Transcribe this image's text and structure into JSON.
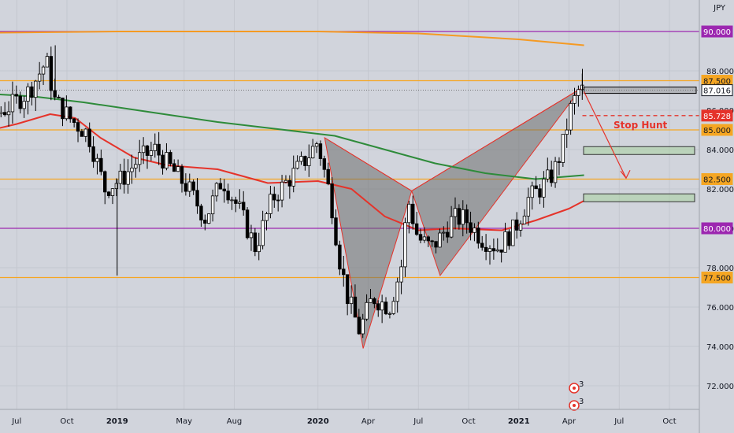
{
  "chart_data": {
    "type": "candlestick",
    "symbol": "JPY",
    "x_tick_labels": [
      "Jul",
      "Oct",
      "2019",
      "May",
      "Aug",
      "2020",
      "Apr",
      "Jul",
      "Oct",
      "2021",
      "Apr",
      "Jul",
      "Oct"
    ],
    "x_tick_months": [
      6,
      9,
      12,
      16,
      19,
      24,
      27,
      30,
      33,
      36,
      39,
      42,
      45
    ],
    "y_tick_labels": [
      "72.000",
      "74.000",
      "76.000",
      "78.000",
      "80.000",
      "82.000",
      "84.000",
      "86.000",
      "88.000"
    ],
    "y_ticks": [
      72,
      74,
      76,
      78,
      80,
      82,
      84,
      86,
      88
    ],
    "ylim": [
      70.8,
      91.6
    ],
    "price_levels": [
      {
        "label": "90.000",
        "value": 90.0,
        "color": "#9c27b0"
      },
      {
        "label": "87.500",
        "value": 87.5,
        "color": "#f5a623"
      },
      {
        "label": "85.000",
        "value": 85.0,
        "color": "#f5a623"
      },
      {
        "label": "82.500",
        "value": 82.5,
        "color": "#f5a623"
      },
      {
        "label": "80.000",
        "value": 80.0,
        "color": "#9c27b0"
      },
      {
        "label": "77.500",
        "value": 77.5,
        "color": "#f5a623"
      }
    ],
    "current_price": {
      "label": "87.016",
      "value": 87.016
    },
    "stop_hunt_level": {
      "label": "85.728",
      "value": 85.728
    },
    "annotation": "Stop Hunt",
    "pattern_points": [
      {
        "m": 24.4,
        "v": 84.6
      },
      {
        "m": 26.7,
        "v": 73.9
      },
      {
        "m": 29.6,
        "v": 81.9
      },
      {
        "m": 31.3,
        "v": 77.6
      },
      {
        "m": 39.7,
        "v": 87.1
      }
    ],
    "ma_orange": [
      {
        "m": 0,
        "v": 89.9
      },
      {
        "m": 12,
        "v": 90.0
      },
      {
        "m": 24,
        "v": 90.0
      },
      {
        "m": 30,
        "v": 89.9
      },
      {
        "m": 36,
        "v": 89.6
      },
      {
        "m": 39.9,
        "v": 89.3
      }
    ],
    "ma_green": [
      {
        "m": 0,
        "v": 87.2
      },
      {
        "m": 3,
        "v": 86.9
      },
      {
        "m": 7,
        "v": 86.7
      },
      {
        "m": 10,
        "v": 86.4
      },
      {
        "m": 14,
        "v": 85.9
      },
      {
        "m": 18,
        "v": 85.4
      },
      {
        "m": 22,
        "v": 85.0
      },
      {
        "m": 25,
        "v": 84.7
      },
      {
        "m": 28,
        "v": 84.0
      },
      {
        "m": 31,
        "v": 83.3
      },
      {
        "m": 34,
        "v": 82.8
      },
      {
        "m": 37,
        "v": 82.5
      },
      {
        "m": 39.9,
        "v": 82.7
      }
    ],
    "ma_red": [
      {
        "m": 0,
        "v": 85.7
      },
      {
        "m": 2,
        "v": 85.2
      },
      {
        "m": 4,
        "v": 84.9
      },
      {
        "m": 6,
        "v": 85.3
      },
      {
        "m": 8,
        "v": 85.8
      },
      {
        "m": 9.5,
        "v": 85.6
      },
      {
        "m": 11,
        "v": 84.6
      },
      {
        "m": 13,
        "v": 83.6
      },
      {
        "m": 15,
        "v": 83.2
      },
      {
        "m": 18,
        "v": 83.0
      },
      {
        "m": 21,
        "v": 82.3
      },
      {
        "m": 24,
        "v": 82.4
      },
      {
        "m": 26,
        "v": 82.0
      },
      {
        "m": 28,
        "v": 80.6
      },
      {
        "m": 30,
        "v": 79.9
      },
      {
        "m": 32,
        "v": 80.0
      },
      {
        "m": 35,
        "v": 79.9
      },
      {
        "m": 37,
        "v": 80.4
      },
      {
        "m": 39,
        "v": 81.0
      },
      {
        "m": 39.9,
        "v": 81.4
      }
    ],
    "candle_path": [
      {
        "m": 0,
        "v": 86.0
      },
      {
        "m": 1,
        "v": 84.6
      },
      {
        "m": 2,
        "v": 83.5
      },
      {
        "m": 3,
        "v": 84.8
      },
      {
        "m": 4,
        "v": 85.2
      },
      {
        "m": 5,
        "v": 85.8
      },
      {
        "m": 6,
        "v": 86.3
      },
      {
        "m": 7,
        "v": 87.0
      },
      {
        "m": 8,
        "v": 88.5
      },
      {
        "m": 8.5,
        "v": 86.5
      },
      {
        "m": 9.5,
        "v": 85.5
      },
      {
        "m": 10.5,
        "v": 84.8
      },
      {
        "m": 11.5,
        "v": 82.0
      },
      {
        "m": 12.5,
        "v": 82.5
      },
      {
        "m": 13.5,
        "v": 83.5
      },
      {
        "m": 14.5,
        "v": 84.0
      },
      {
        "m": 15.5,
        "v": 83.0
      },
      {
        "m": 16.5,
        "v": 82.0
      },
      {
        "m": 17.5,
        "v": 80.5
      },
      {
        "m": 18.5,
        "v": 82.5
      },
      {
        "m": 19.5,
        "v": 81.0
      },
      {
        "m": 20.5,
        "v": 79.0
      },
      {
        "m": 21.5,
        "v": 81.5
      },
      {
        "m": 22.5,
        "v": 82.5
      },
      {
        "m": 23.5,
        "v": 83.5
      },
      {
        "m": 24.2,
        "v": 84.4
      },
      {
        "m": 25.0,
        "v": 81.5
      },
      {
        "m": 25.5,
        "v": 78.5
      },
      {
        "m": 26.0,
        "v": 76.5
      },
      {
        "m": 26.7,
        "v": 74.8
      },
      {
        "m": 27.5,
        "v": 76.5
      },
      {
        "m": 28.5,
        "v": 76.0
      },
      {
        "m": 29.2,
        "v": 78.0
      },
      {
        "m": 29.6,
        "v": 81.5
      },
      {
        "m": 30.2,
        "v": 79.5
      },
      {
        "m": 31.0,
        "v": 79.0
      },
      {
        "m": 31.5,
        "v": 79.5
      },
      {
        "m": 32.3,
        "v": 80.5
      },
      {
        "m": 33.0,
        "v": 80.5
      },
      {
        "m": 34.0,
        "v": 79.5
      },
      {
        "m": 35.0,
        "v": 79.0
      },
      {
        "m": 36.0,
        "v": 80.0
      },
      {
        "m": 36.8,
        "v": 81.5
      },
      {
        "m": 37.5,
        "v": 82.0
      },
      {
        "m": 38.3,
        "v": 82.8
      },
      {
        "m": 38.8,
        "v": 84.0
      },
      {
        "m": 39.3,
        "v": 86.0
      },
      {
        "m": 39.8,
        "v": 87.0
      }
    ],
    "target_zones": [
      {
        "from": 83.75,
        "to": 84.15
      },
      {
        "from": 81.35,
        "to": 81.75
      }
    ],
    "event_badges": [
      "3",
      "3"
    ]
  }
}
